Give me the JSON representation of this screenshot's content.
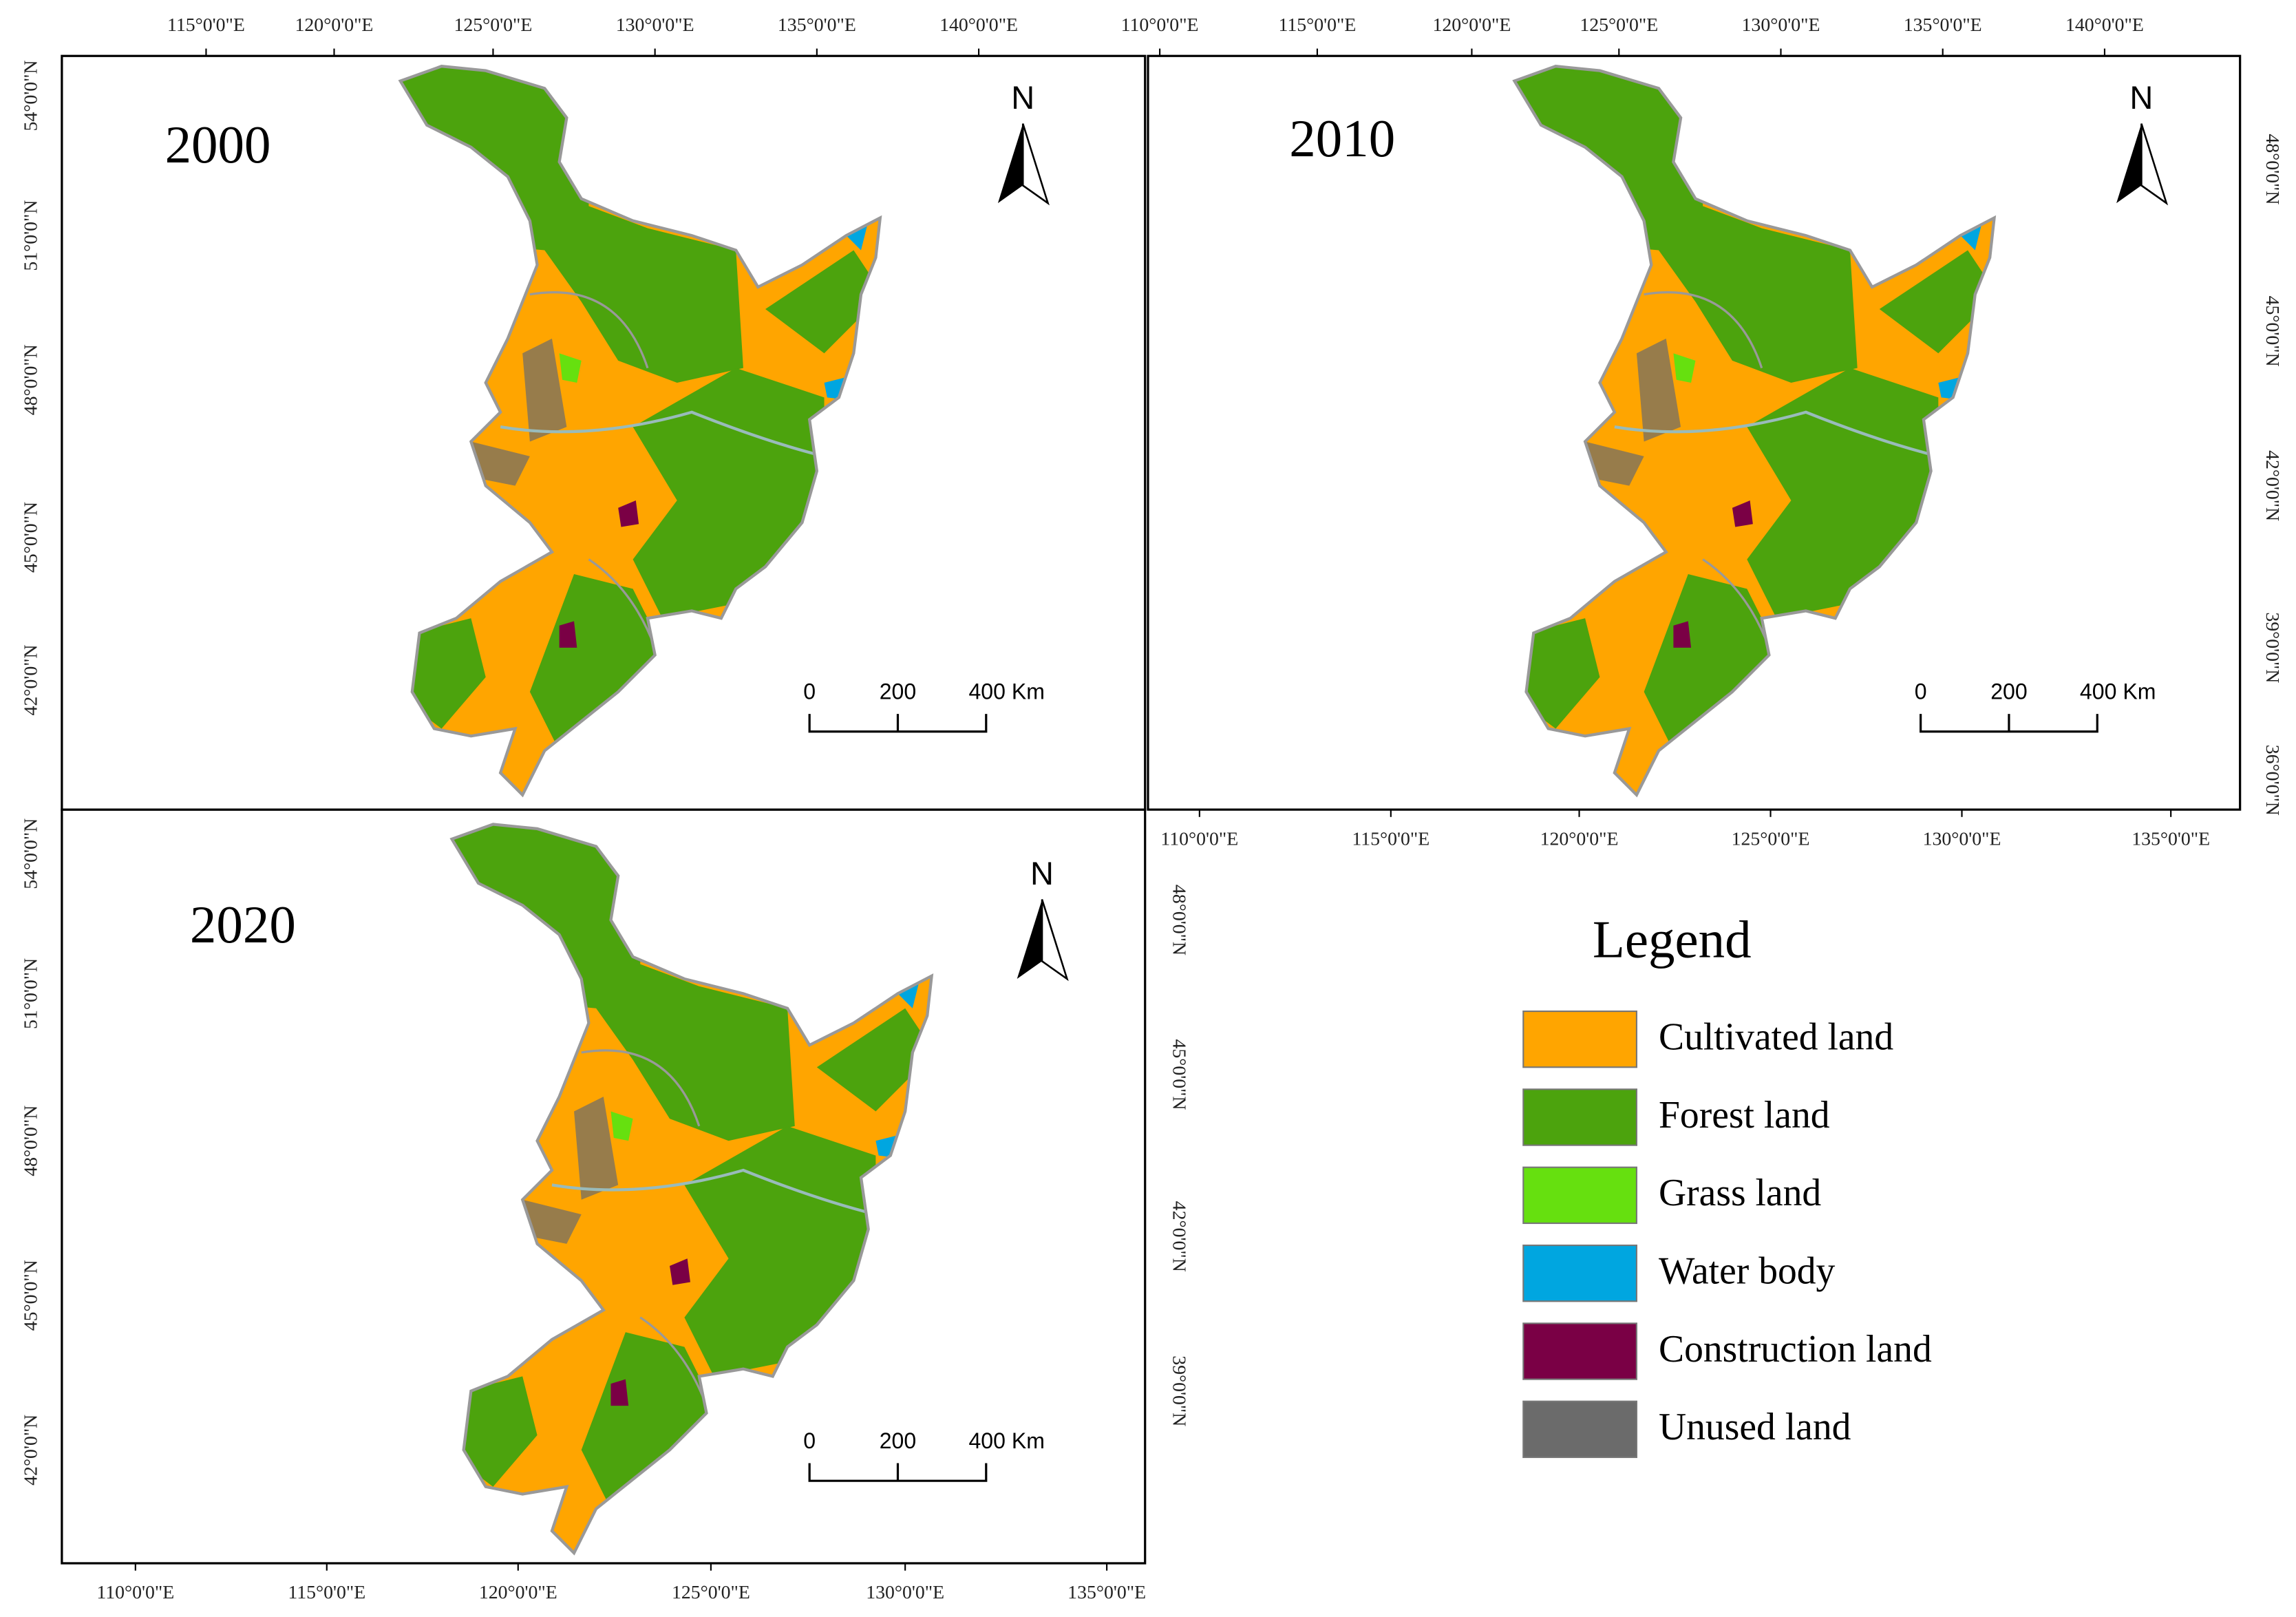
{
  "panels": [
    {
      "year": "2000",
      "top_labels": [
        "115°0'0\"E",
        "120°0'0\"E",
        "125°0'0\"E",
        "130°0'0\"E",
        "135°0'0\"E",
        "140°0'0\"E"
      ],
      "left_labels": [
        "54°0'0\"N",
        "51°0'0\"N",
        "48°0'0\"N",
        "45°0'0\"N",
        "42°0'0\"N"
      ],
      "north": "N",
      "scale_labels": [
        "0",
        "200",
        "400 Km"
      ]
    },
    {
      "year": "2010",
      "top_labels": [
        "110°0'0\"E",
        "115°0'0\"E",
        "120°0'0\"E",
        "125°0'0\"E",
        "130°0'0\"E",
        "135°0'0\"E",
        "140°0'0\"E"
      ],
      "right_labels": [
        "48°0'0\"N",
        "45°0'0\"N",
        "42°0'0\"N",
        "39°0'0\"N",
        "36°0'0\"N"
      ],
      "bottom_labels": [
        "110°0'0\"E",
        "115°0'0\"E",
        "120°0'0\"E",
        "125°0'0\"E",
        "130°0'0\"E",
        "135°0'0\"E"
      ],
      "north": "N",
      "scale_labels": [
        "0",
        "200",
        "400 Km"
      ]
    },
    {
      "year": "2020",
      "left_labels": [
        "54°0'0\"N",
        "51°0'0\"N",
        "48°0'0\"N",
        "45°0'0\"N",
        "42°0'0\"N"
      ],
      "right_labels": [
        "48°0'0\"N",
        "45°0'0\"N",
        "42°0'0\"N",
        "39°0'0\"N"
      ],
      "bottom_labels": [
        "110°0'0\"E",
        "115°0'0\"E",
        "120°0'0\"E",
        "125°0'0\"E",
        "130°0'0\"E",
        "135°0'0\"E"
      ],
      "north": "N",
      "scale_labels": [
        "0",
        "200",
        "400 Km"
      ]
    }
  ],
  "legend": {
    "title": "Legend",
    "items": [
      {
        "label": "Cultivated land",
        "color": "#ffa500"
      },
      {
        "label": "Forest land",
        "color": "#4ca30d"
      },
      {
        "label": "Grass land",
        "color": "#66e00f"
      },
      {
        "label": "Water body",
        "color": "#00a6e0"
      },
      {
        "label": "Construction land",
        "color": "#7a0045"
      },
      {
        "label": "Unused land",
        "color": "#6b6b6b"
      }
    ]
  }
}
